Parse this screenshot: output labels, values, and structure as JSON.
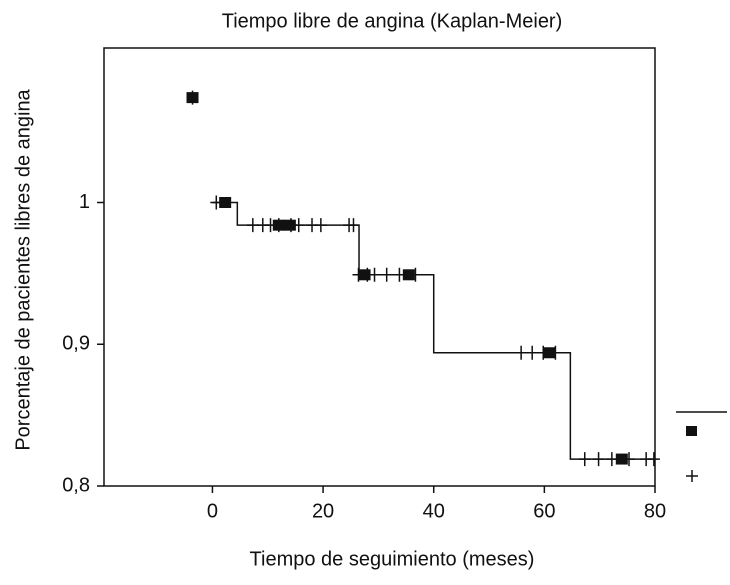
{
  "chart_data": {
    "type": "step",
    "title": "Tiempo libre de angina (Kaplan-Meier)",
    "x_label": "Tiempo de seguimiento (meses)",
    "y_label": "Porcentaje de pacientes libres de angina",
    "xlim": [
      -19.6,
      80
    ],
    "ylim": [
      0.8,
      1.109
    ],
    "xticks": [
      0,
      20,
      40,
      60,
      80
    ],
    "yticks": [
      {
        "value": 0.8,
        "label": "0,8"
      },
      {
        "value": 0.9,
        "label": "0,9"
      },
      1
    ],
    "color": "#111111",
    "series": [
      {
        "x": [
          0,
          4.5,
          26.5,
          40,
          64.7,
          80
        ],
        "y": [
          1.0,
          0.984,
          0.949,
          0.894,
          0.819,
          0.819
        ]
      }
    ],
    "events": {
      "x": [
        -3.6,
        2.3,
        12,
        14,
        27.5,
        35.5,
        61,
        74
      ],
      "y": [
        1.074,
        1.0,
        0.984,
        0.984,
        0.949,
        0.949,
        0.894,
        0.819
      ]
    },
    "censored": {
      "x": [
        -3.6,
        0.7,
        7.3,
        9.1,
        10.5,
        12,
        14.2,
        15.6,
        18,
        19.6,
        24.7,
        25.5,
        26.4,
        28,
        29.3,
        31.5,
        33.8,
        36.7,
        55.8,
        57.8,
        59.8,
        62,
        67.3,
        69.8,
        72.2,
        75.3,
        78.4,
        79.8
      ],
      "y": [
        1.074,
        1.0,
        0.984,
        0.984,
        0.984,
        0.984,
        0.984,
        0.984,
        0.984,
        0.984,
        0.984,
        0.984,
        0.949,
        0.949,
        0.949,
        0.949,
        0.949,
        0.949,
        0.894,
        0.894,
        0.894,
        0.894,
        0.819,
        0.819,
        0.819,
        0.819,
        0.819,
        0.819
      ]
    }
  }
}
